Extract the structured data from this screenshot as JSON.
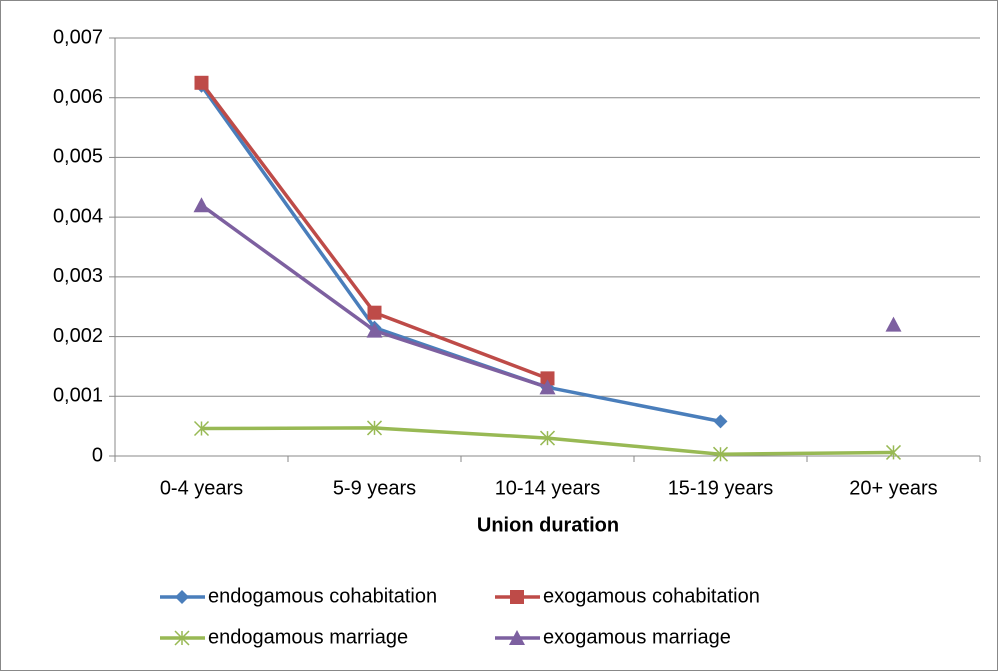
{
  "chart_data": {
    "type": "line",
    "x_label": "Union duration",
    "categories": [
      "0-4 years",
      "5-9 years",
      "10-14 years",
      "15-19 years",
      "20+ years"
    ],
    "ylim": [
      0,
      0.007
    ],
    "yticks": [
      0,
      {
        "value": 0.001,
        "label": "0,001"
      },
      {
        "value": 0.002,
        "label": "0,002"
      },
      {
        "value": 0.003,
        "label": "0,003"
      },
      {
        "value": 0.004,
        "label": "0,004"
      },
      {
        "value": 0.005,
        "label": "0,005"
      },
      {
        "value": 0.006,
        "label": "0,006"
      },
      {
        "value": 0.007,
        "label": "0,007"
      }
    ],
    "grid": true,
    "legend": "bottom",
    "series": [
      {
        "name": "endogamous cohabitation",
        "color": "#4a7ebb",
        "marker": "diamond",
        "values": [
          0.0062,
          0.00215,
          0.00115,
          0.00058,
          null
        ]
      },
      {
        "name": "exogamous cohabitation",
        "color": "#be4b48",
        "marker": "square",
        "values": [
          0.00625,
          0.0024,
          0.0013,
          null,
          null
        ]
      },
      {
        "name": "endogamous marriage",
        "color": "#98b954",
        "marker": "asterisk",
        "values": [
          0.00046,
          0.00047,
          0.0003,
          3e-05,
          6e-05
        ]
      },
      {
        "name": "exogamous marriage",
        "color": "#7d60a0",
        "marker": "triangle",
        "values": [
          0.0042,
          0.0021,
          0.00115,
          null,
          0.0022
        ]
      }
    ]
  }
}
